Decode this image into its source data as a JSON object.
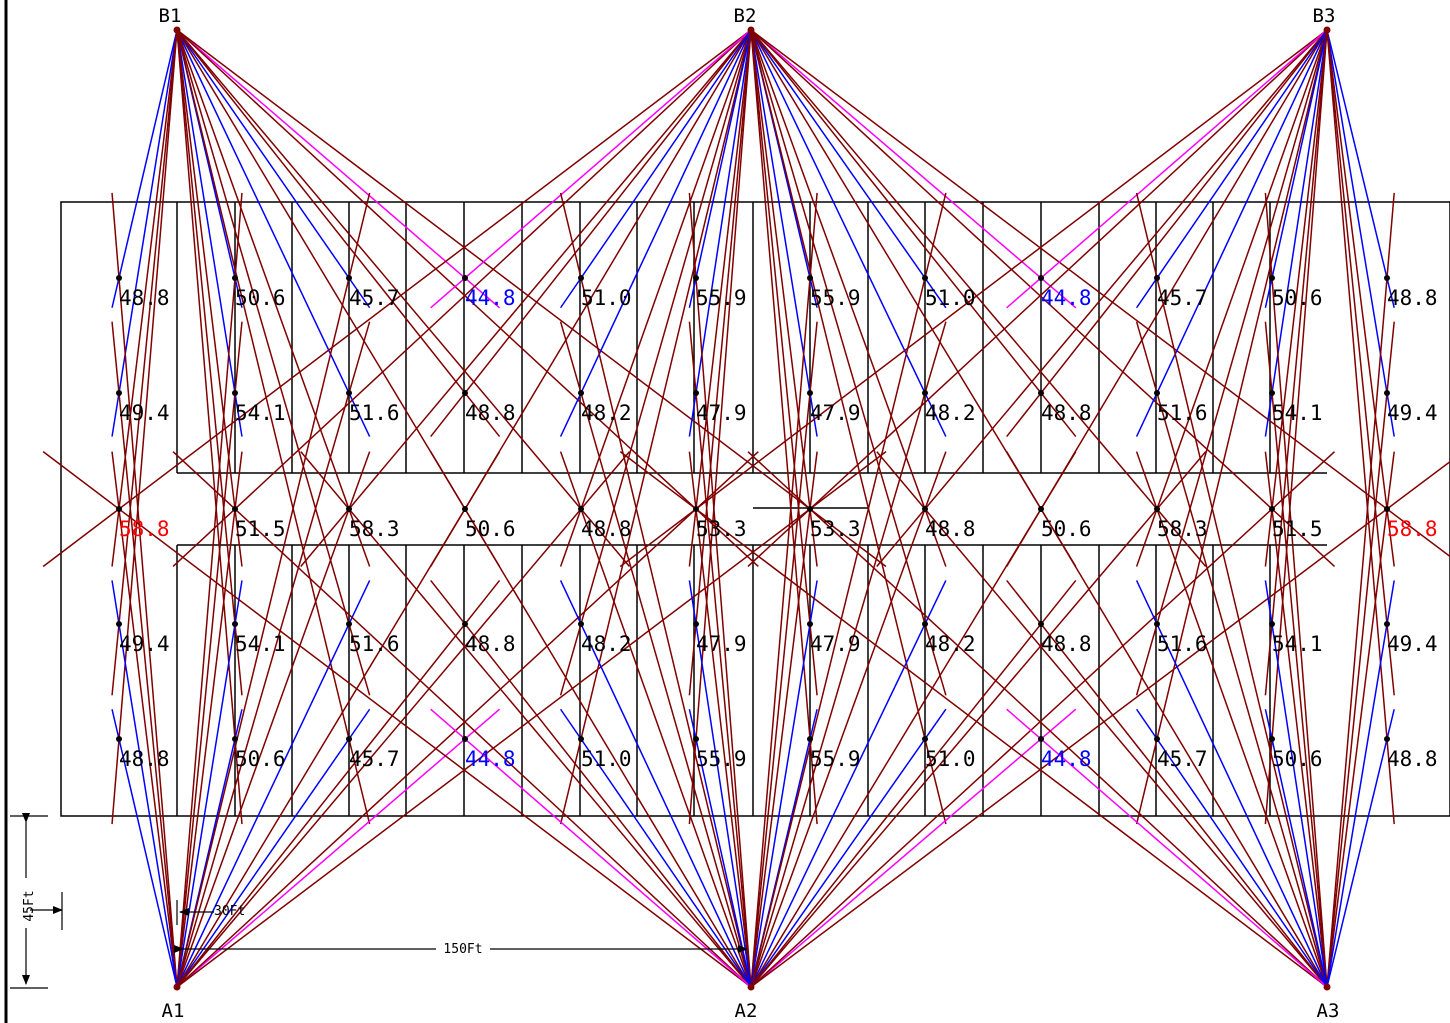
{
  "poles": {
    "top": [
      {
        "id": "B1"
      },
      {
        "id": "B2"
      },
      {
        "id": "B3"
      }
    ],
    "bottom": [
      {
        "id": "A1"
      },
      {
        "id": "A2"
      },
      {
        "id": "A3"
      }
    ]
  },
  "readings": {
    "rows": [
      [
        "48.8",
        "50.6",
        "45.7",
        "44.8",
        "51.0",
        "55.9",
        "55.9",
        "51.0",
        "44.8",
        "45.7",
        "50.6",
        "48.8"
      ],
      [
        "49.4",
        "54.1",
        "51.6",
        "48.8",
        "48.2",
        "47.9",
        "47.9",
        "48.2",
        "48.8",
        "51.6",
        "54.1",
        "49.4"
      ],
      [
        "58.8",
        "51.5",
        "58.3",
        "50.6",
        "48.8",
        "53.3",
        "53.3",
        "48.8",
        "50.6",
        "58.3",
        "51.5",
        "58.8"
      ],
      [
        "49.4",
        "54.1",
        "51.6",
        "48.8",
        "48.2",
        "47.9",
        "47.9",
        "48.2",
        "48.8",
        "51.6",
        "54.1",
        "49.4"
      ],
      [
        "48.8",
        "50.6",
        "45.7",
        "44.8",
        "51.0",
        "55.9",
        "55.9",
        "51.0",
        "44.8",
        "45.7",
        "50.6",
        "48.8"
      ]
    ],
    "colors": {
      "normal": "#000000",
      "min": "#0000ff",
      "max": "#ff0000"
    },
    "min_value": "44.8",
    "max_value": "58.8"
  },
  "aim_line_colors": {
    "blue": "#0000ff",
    "dark_red": "#800000",
    "magenta": "#ff00ff"
  },
  "dimensions": {
    "spacing_label": "150Ft",
    "setback_label": "30Ft",
    "height_label": "45Ft"
  }
}
